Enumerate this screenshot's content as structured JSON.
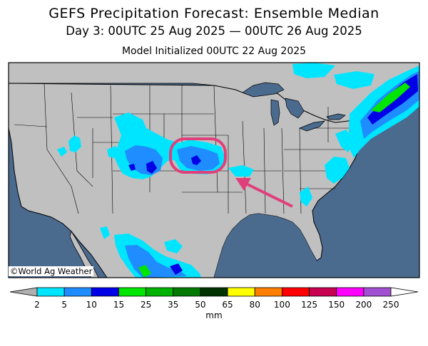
{
  "title": "GEFS Precipitation Forecast: Ensemble Median",
  "subtitle": "Day 3: 00UTC 25 Aug 2025 — 00UTC 26 Aug 2025",
  "initialized": "Model Initialized 00UTC 22 Aug 2025",
  "credit": "©World Ag Weather",
  "legend": {
    "units": "mm",
    "labels": [
      "2",
      "5",
      "10",
      "15",
      "25",
      "35",
      "50",
      "65",
      "80",
      "100",
      "125",
      "150",
      "200",
      "250"
    ],
    "colors": [
      "#00e5ff",
      "#1f8cff",
      "#0000e6",
      "#00e600",
      "#00b300",
      "#007a00",
      "#003300",
      "#ffff00",
      "#ff8000",
      "#ff0000",
      "#c80050",
      "#ff00ff",
      "#a050d0"
    ],
    "low_color": "#b0b0b0",
    "high_color": "#ffffff"
  },
  "colors": {
    "ocean": "#4a6a8e",
    "land": "#c0c0c0",
    "annotation": "#e0407a"
  },
  "annotation": "circle-and-arrow-highlighting-central-plains-rainfall"
}
